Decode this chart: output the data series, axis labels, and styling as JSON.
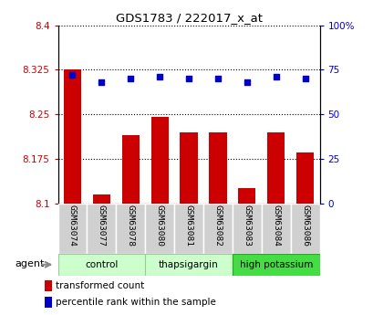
{
  "title": "GDS1783 / 222017_x_at",
  "samples": [
    "GSM63074",
    "GSM63077",
    "GSM63078",
    "GSM63080",
    "GSM63081",
    "GSM63082",
    "GSM63083",
    "GSM63084",
    "GSM63086"
  ],
  "bar_values": [
    8.325,
    8.115,
    8.215,
    8.245,
    8.22,
    8.22,
    8.125,
    8.22,
    8.185
  ],
  "dot_values": [
    72,
    68,
    70,
    71,
    70,
    70,
    68,
    71,
    70
  ],
  "bar_color": "#cc0000",
  "dot_color": "#0000cc",
  "ylim_left": [
    8.1,
    8.4
  ],
  "ylim_right": [
    0,
    100
  ],
  "yticks_left": [
    8.1,
    8.175,
    8.25,
    8.325,
    8.4
  ],
  "ytick_labels_left": [
    "8.1",
    "8.175",
    "8.25",
    "8.325",
    "8.4"
  ],
  "yticks_right": [
    0,
    25,
    50,
    75,
    100
  ],
  "ytick_labels_right": [
    "0",
    "25",
    "50",
    "75",
    "100%"
  ],
  "group_configs": [
    [
      0,
      2,
      "control",
      "#ccffcc",
      "#99cc99"
    ],
    [
      3,
      5,
      "thapsigargin",
      "#ccffcc",
      "#99cc99"
    ],
    [
      6,
      8,
      "high potassium",
      "#44dd44",
      "#22aa22"
    ]
  ],
  "agent_label": "agent",
  "legend_bar_label": "transformed count",
  "legend_dot_label": "percentile rank within the sample",
  "tick_label_color_left": "#cc0000",
  "tick_label_color_right": "#0000cc",
  "bar_bottom": 8.1,
  "cell_color": "#d0d0d0",
  "cell_edge_color": "#ffffff"
}
